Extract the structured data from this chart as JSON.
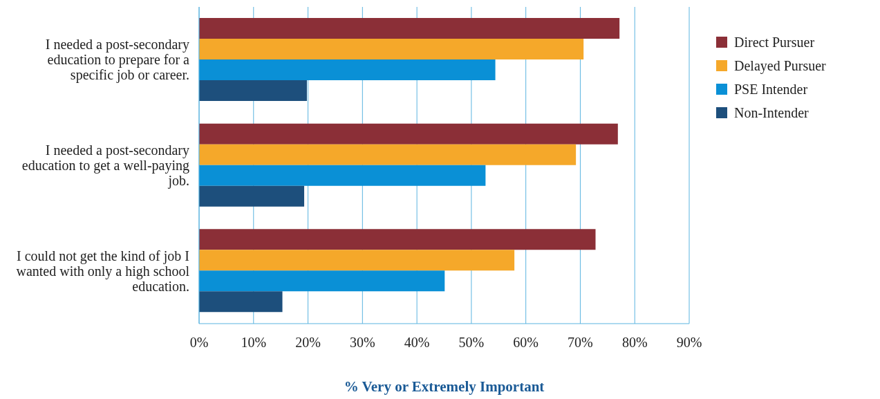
{
  "chart_data": {
    "type": "bar",
    "orientation": "horizontal",
    "xlabel": "% Very or Extremely Important",
    "categories": [
      "I needed a post-secondary education to prepare for a specific job or career.",
      "I needed a post-secondary education to get a well-paying job.",
      "I could not get the kind of job I wanted with only a high school education."
    ],
    "series": [
      {
        "name": "Direct Pursuer",
        "color": "#8b2f37",
        "values": [
          77.2,
          76.9,
          72.8
        ]
      },
      {
        "name": "Delayed Pursuer",
        "color": "#f5a82a",
        "values": [
          70.6,
          69.2,
          57.9
        ]
      },
      {
        "name": "PSE Intender",
        "color": "#0a90d6",
        "values": [
          54.4,
          52.6,
          45.1
        ]
      },
      {
        "name": "Non-Intender",
        "color": "#1d4f7c",
        "values": [
          19.8,
          19.3,
          15.3
        ]
      }
    ],
    "xlim": [
      0,
      90
    ],
    "xticks": [
      {
        "value": 0,
        "label": "0%"
      },
      {
        "value": 10,
        "label": "10%"
      },
      {
        "value": 20,
        "label": "20%"
      },
      {
        "value": 30,
        "label": "30%"
      },
      {
        "value": 40,
        "label": "40%"
      },
      {
        "value": 50,
        "label": "50%"
      },
      {
        "value": 60,
        "label": "60%"
      },
      {
        "value": 70,
        "label": "70%"
      },
      {
        "value": 80,
        "label": "80%"
      },
      {
        "value": 90,
        "label": "90%"
      }
    ],
    "grid": "x",
    "legend": "top right"
  }
}
